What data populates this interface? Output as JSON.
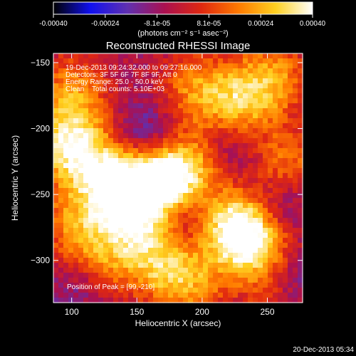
{
  "chart_data": {
    "type": "heatmap",
    "title": "Reconstructed RHESSI Image",
    "xlabel": "Heliocentric X (arcsec)",
    "ylabel": "Heliocentric Y (arcsec)",
    "xlim": [
      86,
      277
    ],
    "ylim": [
      -332,
      -143
    ],
    "x_ticks": [
      100,
      150,
      200,
      250
    ],
    "y_ticks": [
      -150,
      -200,
      -250,
      -300
    ],
    "colorbar": {
      "label": "(photons cm⁻² s⁻¹ asec⁻²)",
      "ticks": [
        "-0.00040",
        "-0.00024",
        "-8.1e-05",
        "8.1e-05",
        "0.00024",
        "0.00040"
      ],
      "vmin": -0.0004,
      "vmax": 0.0004,
      "colormap": [
        "#000000",
        "#1010f0",
        "#6030b0",
        "#aa1050",
        "#e02810",
        "#ff7a00",
        "#ffd020",
        "#ffffff"
      ]
    },
    "annotations": [
      "19-Dec-2013 09:24:32.000 to 09:27:16.000",
      "Detectors: 3F 5F 6F 7F 8F 9F, Att 0",
      "Energy Range: 25.0 - 50.0 keV",
      "Clean    Total counts: 5.10E+03"
    ],
    "peak_text": "Position of Peak = [99,-210]",
    "peak": [
      99,
      -210
    ],
    "timestamp": "20-Dec-2013 05:34",
    "sources": [
      {
        "x": 99,
        "y": -212,
        "amp": 1.0
      },
      {
        "x": 130,
        "y": -240,
        "amp": 0.8
      },
      {
        "x": 160,
        "y": -245,
        "amp": 0.85
      },
      {
        "x": 185,
        "y": -232,
        "amp": 0.85
      },
      {
        "x": 145,
        "y": -268,
        "amp": 0.6
      },
      {
        "x": 165,
        "y": -300,
        "amp": 0.6
      },
      {
        "x": 190,
        "y": -318,
        "amp": 0.55
      },
      {
        "x": 225,
        "y": -275,
        "amp": 0.9
      },
      {
        "x": 240,
        "y": -288,
        "amp": 0.65
      },
      {
        "x": 195,
        "y": -170,
        "amp": 0.55
      },
      {
        "x": 230,
        "y": -180,
        "amp": 0.65
      },
      {
        "x": 255,
        "y": -160,
        "amp": 0.55
      },
      {
        "x": 265,
        "y": -225,
        "amp": 0.5
      },
      {
        "x": 100,
        "y": -170,
        "amp": 0.55
      },
      {
        "x": 120,
        "y": -300,
        "amp": 0.5
      },
      {
        "x": 100,
        "y": -270,
        "amp": 0.45
      },
      {
        "x": 255,
        "y": -320,
        "amp": 0.3
      }
    ],
    "voids": [
      {
        "x": 158,
        "y": -205,
        "amp": -0.7
      },
      {
        "x": 185,
        "y": -268,
        "amp": -0.6
      },
      {
        "x": 260,
        "y": -258,
        "amp": -0.55
      },
      {
        "x": 108,
        "y": -318,
        "amp": -0.5
      },
      {
        "x": 270,
        "y": -312,
        "amp": -0.6
      },
      {
        "x": 225,
        "y": -215,
        "amp": -0.4
      }
    ]
  }
}
